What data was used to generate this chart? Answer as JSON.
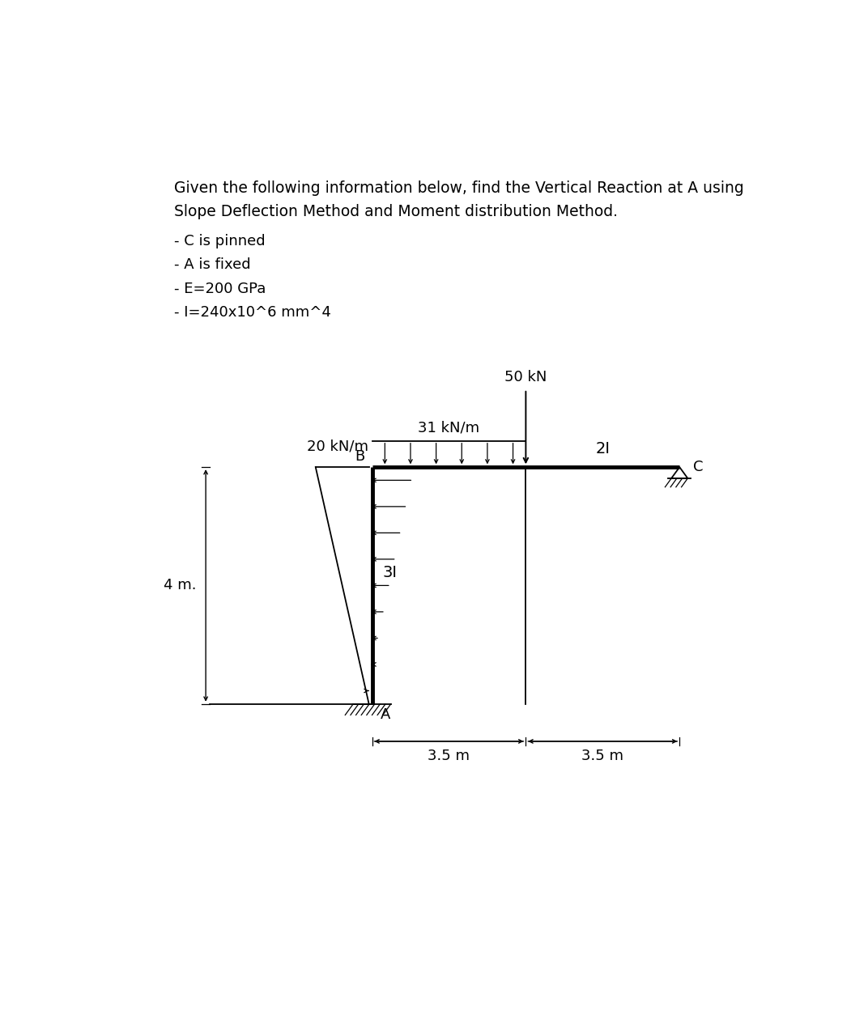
{
  "title_line1": "Given the following information below, find the Vertical Reaction at A using",
  "title_line2": "Slope Deflection Method and Moment distribution Method.",
  "bullet1": "- C is pinned",
  "bullet2": "- A is fixed",
  "bullet3": "- E=200 GPa",
  "bullet4": "- I=240x10^6 mm^4",
  "text_color": "#000000",
  "bg_color": "#ffffff",
  "font_size_title": 13.5,
  "font_size_bullet": 13.0,
  "load_20_label": "20 kN/m",
  "load_31_label": "31 kN/m",
  "load_50_label": "50 kN",
  "label_3I": "3I",
  "label_2I": "2I",
  "label_4m": "4 m.",
  "label_35_left": "3.5 m",
  "label_35_right": "3.5 m",
  "label_A": "A",
  "label_B": "B",
  "label_C": "C",
  "struct_lw": 3.5,
  "thin_lw": 1.3
}
